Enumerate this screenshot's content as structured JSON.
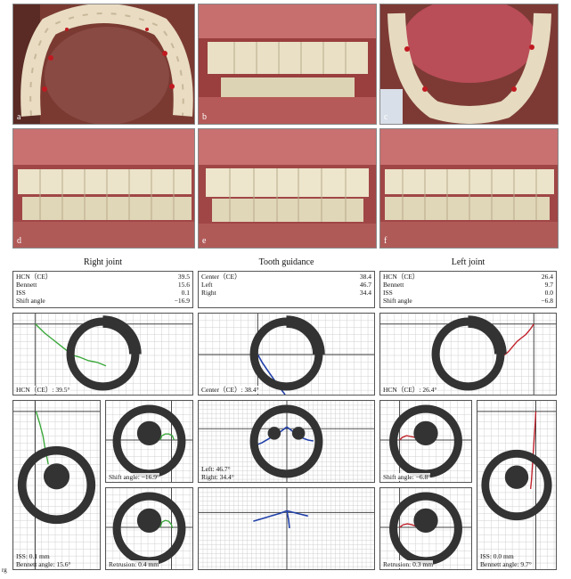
{
  "photos": [
    {
      "label": "a",
      "view": "upper-occlusal"
    },
    {
      "label": "b",
      "view": "front-open"
    },
    {
      "label": "c",
      "view": "lower-occlusal"
    },
    {
      "label": "d",
      "view": "right-lateral"
    },
    {
      "label": "e",
      "view": "front-closed"
    },
    {
      "label": "f",
      "view": "left-lateral"
    }
  ],
  "sections": {
    "right": "Right joint",
    "guidance": "Tooth guidance",
    "left": "Left joint"
  },
  "tables": {
    "right": [
      {
        "k": "HCN（CE）",
        "v": "39.5"
      },
      {
        "k": "Bennett",
        "v": "15.6"
      },
      {
        "k": "ISS",
        "v": "0.1"
      },
      {
        "k": "Shift angle",
        "v": "−16.9"
      }
    ],
    "guidance": [
      {
        "k": "Center（CE）",
        "v": "38.4"
      },
      {
        "k": "Left",
        "v": "46.7"
      },
      {
        "k": "Right",
        "v": "34.4"
      }
    ],
    "left": [
      {
        "k": "HCN（CE）",
        "v": "26.4"
      },
      {
        "k": "Bennett",
        "v": "9.7"
      },
      {
        "k": "ISS",
        "v": "0.0"
      },
      {
        "k": "Shift angle",
        "v": "−6.8"
      }
    ]
  },
  "captions": {
    "right_hcn": "HCN（CE）: 39.5°",
    "center": "Center（CE）: 38.4°",
    "left_hcn": "HCN（CE）: 26.4°",
    "right_shift": "Shift angle: −16.9°",
    "right_retrusion": "Retrusion: 0.4 mm",
    "right_iss": "ISS: 0.1 mm",
    "right_bennett": "Bennett angle: 15.6°",
    "guidance_left": "Left: 46.7°",
    "guidance_right": "Right: 34.4°",
    "left_shift": "Shift angle: −6.8°",
    "left_retrusion": "Retrusion: 0.3 mm",
    "left_iss": "ISS: 0.0 mm",
    "left_bennett": "Bennett angle: 9.7°"
  },
  "figure_label": "rg",
  "colors": {
    "right": "#3aa83a",
    "guidance": "#1f3fa8",
    "left": "#c0202a"
  }
}
